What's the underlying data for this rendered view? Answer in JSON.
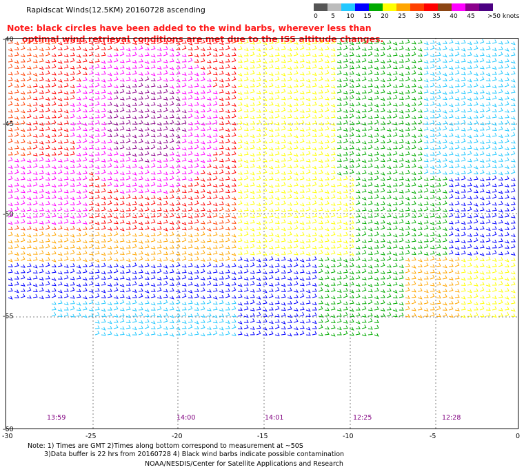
{
  "title": "Rapidscat Winds(12.5KM) 20160728 ascending",
  "note": {
    "line1": "Note: black circles have been added to the wind barbs, wherever less than",
    "line2": "optimal wind retrieval conditions are met due to the ISS altitude changes."
  },
  "legend": {
    "unit_label": ">50 knots",
    "ticks": [
      "0",
      "5",
      "10",
      "15",
      "20",
      "25",
      "30",
      "35",
      "40",
      "45"
    ],
    "colors": [
      "#555555",
      "#bcbcbc",
      "#23c8ff",
      "#0000ff",
      "#00aa00",
      "#ffff00",
      "#ffa500",
      "#ff4000",
      "#ff0000",
      "#8b4513",
      "#ff00ff",
      "#8b008b",
      "#4b0082"
    ]
  },
  "y_axis": {
    "labels": [
      "-40",
      "-45",
      "-50",
      "-55",
      "-60"
    ]
  },
  "x_axis": {
    "labels": [
      "-30",
      "-25",
      "-20",
      "-15",
      "-10",
      "-5",
      "0"
    ]
  },
  "pass_times": [
    "13:59",
    "14:00",
    "14:01",
    "12:25",
    "12:28"
  ],
  "footer": {
    "line1": "Note: 1) Times are GMT 2)Times along bottom correspond to measurement at ~50S",
    "line2": "3)Data buffer is 22 hrs from 20160728 4) Black wind barbs indicate possible contamination",
    "line3": "NOAA/NESDIS/Center for Satellite Applications and Research"
  }
}
